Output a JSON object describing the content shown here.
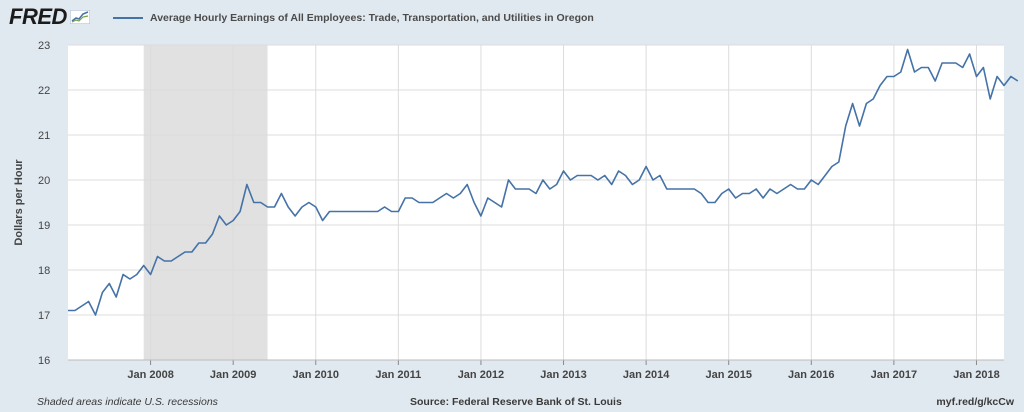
{
  "logo_text": "FRED",
  "legend_text": "Average Hourly Earnings of All Employees: Trade, Transportation, and Utilities in Oregon",
  "footer": {
    "left": "Shaded areas indicate U.S. recessions",
    "center": "Source: Federal Reserve Bank of St. Louis",
    "right": "myf.red/g/kcCw"
  },
  "colors": {
    "line": "#4572a7",
    "recession": "#e1e1e1",
    "plot_bg": "#ffffff",
    "page_bg": "#e1e9f0",
    "grid": "#dcdcdc"
  },
  "chart_data": {
    "type": "line",
    "title": "Average Hourly Earnings of All Employees: Trade, Transportation, and Utilities in Oregon",
    "ylabel": "Dollars per Hour",
    "xlabel": "",
    "ylim": [
      16,
      23
    ],
    "yticks": [
      16,
      17,
      18,
      19,
      20,
      21,
      22,
      23
    ],
    "xlim": [
      "2007-01",
      "2018-05"
    ],
    "xticks": [
      {
        "date": "2008-01",
        "label": "Jan 2008"
      },
      {
        "date": "2009-01",
        "label": "Jan 2009"
      },
      {
        "date": "2010-01",
        "label": "Jan 2010"
      },
      {
        "date": "2011-01",
        "label": "Jan 2011"
      },
      {
        "date": "2012-01",
        "label": "Jan 2012"
      },
      {
        "date": "2013-01",
        "label": "Jan 2013"
      },
      {
        "date": "2014-01",
        "label": "Jan 2014"
      },
      {
        "date": "2015-01",
        "label": "Jan 2015"
      },
      {
        "date": "2016-01",
        "label": "Jan 2016"
      },
      {
        "date": "2017-01",
        "label": "Jan 2017"
      },
      {
        "date": "2018-01",
        "label": "Jan 2018"
      }
    ],
    "recessions": [
      {
        "start": "2007-12",
        "end": "2009-06"
      }
    ],
    "grid": true,
    "legend_position": "top-left",
    "series": [
      {
        "name": "Average Hourly Earnings of All Employees: Trade, Transportation, and Utilities in Oregon",
        "start": "2007-01",
        "values": [
          17.1,
          17.1,
          17.2,
          17.3,
          17.0,
          17.5,
          17.7,
          17.4,
          17.9,
          17.8,
          17.9,
          18.1,
          17.9,
          18.3,
          18.2,
          18.2,
          18.3,
          18.4,
          18.4,
          18.6,
          18.6,
          18.8,
          19.2,
          19.0,
          19.1,
          19.3,
          19.9,
          19.5,
          19.5,
          19.4,
          19.4,
          19.7,
          19.4,
          19.2,
          19.4,
          19.5,
          19.4,
          19.1,
          19.3,
          19.3,
          19.3,
          19.3,
          19.3,
          19.3,
          19.3,
          19.3,
          19.4,
          19.3,
          19.3,
          19.6,
          19.6,
          19.5,
          19.5,
          19.5,
          19.6,
          19.7,
          19.6,
          19.7,
          19.9,
          19.5,
          19.2,
          19.6,
          19.5,
          19.4,
          20.0,
          19.8,
          19.8,
          19.8,
          19.7,
          20.0,
          19.8,
          19.9,
          20.2,
          20.0,
          20.1,
          20.1,
          20.1,
          20.0,
          20.1,
          19.9,
          20.2,
          20.1,
          19.9,
          20.0,
          20.3,
          20.0,
          20.1,
          19.8,
          19.8,
          19.8,
          19.8,
          19.8,
          19.7,
          19.5,
          19.5,
          19.7,
          19.8,
          19.6,
          19.7,
          19.7,
          19.8,
          19.6,
          19.8,
          19.7,
          19.8,
          19.9,
          19.8,
          19.8,
          20.0,
          19.9,
          20.1,
          20.3,
          20.4,
          21.2,
          21.7,
          21.2,
          21.7,
          21.8,
          22.1,
          22.3,
          22.3,
          22.4,
          22.9,
          22.4,
          22.5,
          22.5,
          22.2,
          22.6,
          22.6,
          22.6,
          22.5,
          22.8,
          22.3,
          22.5,
          21.8,
          22.3,
          22.1,
          22.3,
          22.2
        ]
      }
    ]
  }
}
